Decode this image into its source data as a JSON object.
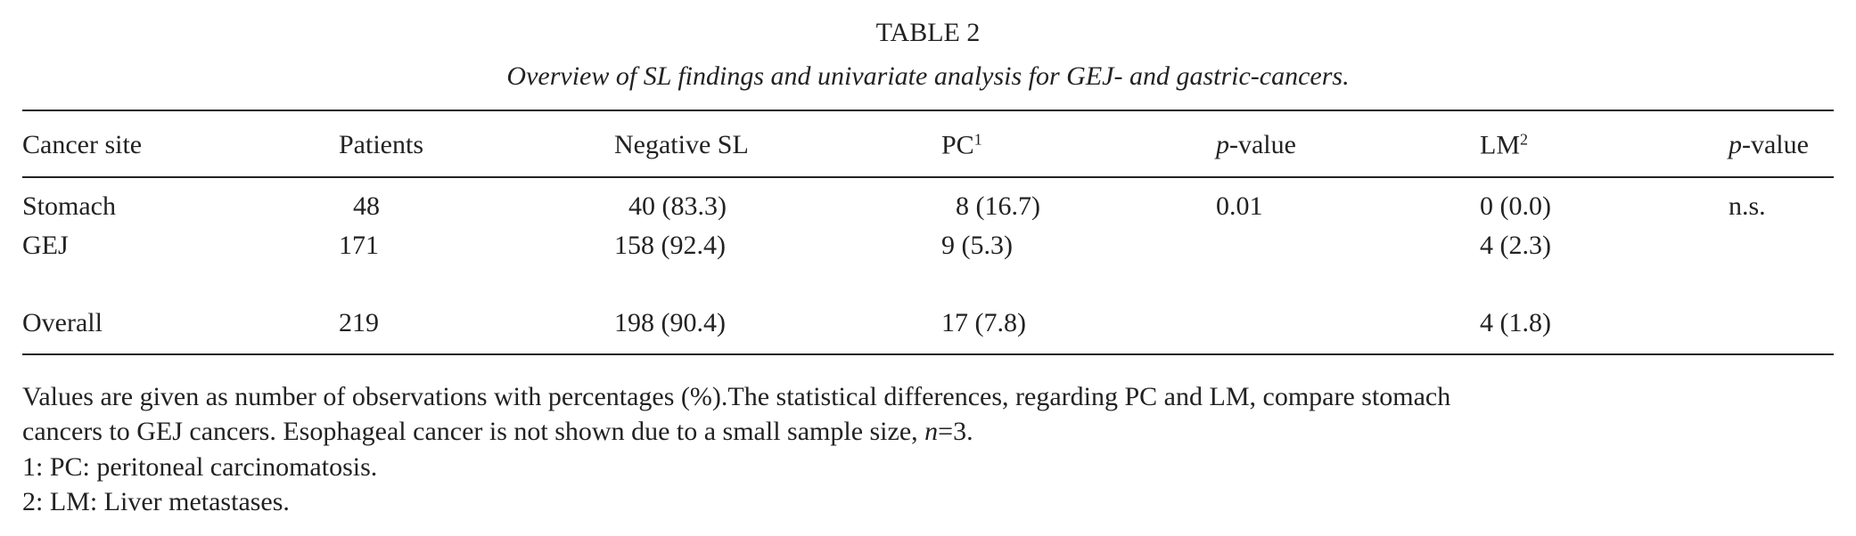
{
  "title": "TABLE 2",
  "caption": "Overview of SL findings and univariate analysis for GEJ- and gastric-cancers.",
  "table": {
    "header": [
      {
        "text": "Cancer site"
      },
      {
        "text": "Patients"
      },
      {
        "text": "Negative SL"
      },
      {
        "text": "PC",
        "sup": "1"
      },
      {
        "italic": "p",
        "text": "-value"
      },
      {
        "text": "LM",
        "sup": "2"
      },
      {
        "italic": "p",
        "text": "-value"
      }
    ],
    "rows": [
      [
        "Stomach",
        "48",
        "40 (83.3)",
        "8 (16.7)",
        "0.01",
        "0 (0.0)",
        "n.s."
      ],
      [
        "GEJ",
        "171",
        "158 (92.4)",
        "9 (5.3)",
        "",
        "4 (2.3)",
        ""
      ],
      [
        "Overall",
        "219",
        "198 (90.4)",
        "17 (7.8)",
        "",
        "4 (1.8)",
        ""
      ]
    ]
  },
  "notes": {
    "line1": "Values are given as number of observations with percentages (%).The statistical differences, regarding PC and LM, compare stomach",
    "line2": "cancers to GEJ cancers. Esophageal cancer is not shown due to a small sample size,",
    "n_symbol": "n",
    "n_value": "=3.",
    "footnote1": "1: PC: peritoneal carcinomatosis.",
    "footnote2": "2: LM: Liver metastases."
  }
}
